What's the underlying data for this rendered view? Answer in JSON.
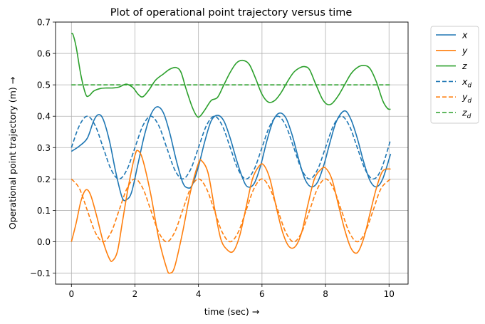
{
  "chart_data": {
    "type": "line",
    "title": "Plot of operational point trajectory versus time",
    "xlabel": "time (sec)  →",
    "ylabel": "Operational point trajectory (m)  →",
    "xlim": [
      -0.5,
      10.6
    ],
    "ylim": [
      -0.135,
      0.7
    ],
    "xticks": [
      0,
      2,
      4,
      6,
      8,
      10
    ],
    "xtick_labels": [
      "0",
      "2",
      "4",
      "6",
      "8",
      "10"
    ],
    "yticks": [
      -0.1,
      0.0,
      0.1,
      0.2,
      0.3,
      0.4,
      0.5,
      0.6,
      0.7
    ],
    "ytick_labels": [
      "−0.1",
      "0.0",
      "0.1",
      "0.2",
      "0.3",
      "0.4",
      "0.5",
      "0.6",
      "0.7"
    ],
    "grid": true,
    "legend_position": "outside-top-right",
    "series": [
      {
        "name": "x",
        "sub": "",
        "color": "#1f77b4",
        "dash": "solid",
        "points": [
          [
            0,
            0.288
          ],
          [
            0.25,
            0.305
          ],
          [
            0.5,
            0.33
          ],
          [
            0.7,
            0.385
          ],
          [
            0.85,
            0.405
          ],
          [
            1.0,
            0.39
          ],
          [
            1.2,
            0.32
          ],
          [
            1.4,
            0.22
          ],
          [
            1.6,
            0.14
          ],
          [
            1.75,
            0.135
          ],
          [
            1.9,
            0.16
          ],
          [
            2.1,
            0.25
          ],
          [
            2.3,
            0.34
          ],
          [
            2.5,
            0.405
          ],
          [
            2.7,
            0.43
          ],
          [
            2.9,
            0.41
          ],
          [
            3.1,
            0.345
          ],
          [
            3.3,
            0.26
          ],
          [
            3.5,
            0.19
          ],
          [
            3.65,
            0.172
          ],
          [
            3.8,
            0.18
          ],
          [
            4.0,
            0.24
          ],
          [
            4.2,
            0.32
          ],
          [
            4.4,
            0.385
          ],
          [
            4.6,
            0.403
          ],
          [
            4.8,
            0.385
          ],
          [
            5.0,
            0.33
          ],
          [
            5.2,
            0.26
          ],
          [
            5.4,
            0.2
          ],
          [
            5.55,
            0.175
          ],
          [
            5.75,
            0.185
          ],
          [
            5.95,
            0.24
          ],
          [
            6.15,
            0.32
          ],
          [
            6.35,
            0.385
          ],
          [
            6.55,
            0.41
          ],
          [
            6.75,
            0.395
          ],
          [
            6.95,
            0.34
          ],
          [
            7.15,
            0.265
          ],
          [
            7.35,
            0.2
          ],
          [
            7.55,
            0.175
          ],
          [
            7.75,
            0.19
          ],
          [
            7.95,
            0.245
          ],
          [
            8.15,
            0.32
          ],
          [
            8.35,
            0.385
          ],
          [
            8.6,
            0.417
          ],
          [
            8.8,
            0.39
          ],
          [
            9.0,
            0.33
          ],
          [
            9.2,
            0.255
          ],
          [
            9.4,
            0.195
          ],
          [
            9.6,
            0.175
          ],
          [
            9.8,
            0.2
          ],
          [
            10.05,
            0.28
          ]
        ]
      },
      {
        "name": "y",
        "sub": "",
        "color": "#ff7f0e",
        "dash": "solid",
        "points": [
          [
            0,
            0.0
          ],
          [
            0.15,
            0.06
          ],
          [
            0.3,
            0.13
          ],
          [
            0.45,
            0.165
          ],
          [
            0.6,
            0.15
          ],
          [
            0.8,
            0.08
          ],
          [
            1.0,
            0.0
          ],
          [
            1.2,
            -0.055
          ],
          [
            1.3,
            -0.06
          ],
          [
            1.45,
            -0.03
          ],
          [
            1.6,
            0.06
          ],
          [
            1.8,
            0.18
          ],
          [
            2.0,
            0.275
          ],
          [
            2.1,
            0.29
          ],
          [
            2.25,
            0.26
          ],
          [
            2.5,
            0.15
          ],
          [
            2.75,
            0.01
          ],
          [
            3.0,
            -0.085
          ],
          [
            3.1,
            -0.1
          ],
          [
            3.25,
            -0.08
          ],
          [
            3.5,
            0.03
          ],
          [
            3.75,
            0.16
          ],
          [
            4.0,
            0.25
          ],
          [
            4.1,
            0.258
          ],
          [
            4.3,
            0.22
          ],
          [
            4.5,
            0.11
          ],
          [
            4.7,
            0.01
          ],
          [
            4.9,
            -0.025
          ],
          [
            5.1,
            -0.03
          ],
          [
            5.3,
            0.02
          ],
          [
            5.5,
            0.11
          ],
          [
            5.7,
            0.2
          ],
          [
            5.9,
            0.24
          ],
          [
            6.05,
            0.245
          ],
          [
            6.25,
            0.2
          ],
          [
            6.45,
            0.11
          ],
          [
            6.65,
            0.03
          ],
          [
            6.85,
            -0.015
          ],
          [
            7.05,
            -0.015
          ],
          [
            7.25,
            0.03
          ],
          [
            7.45,
            0.12
          ],
          [
            7.65,
            0.2
          ],
          [
            7.85,
            0.23
          ],
          [
            8.0,
            0.235
          ],
          [
            8.2,
            0.2
          ],
          [
            8.4,
            0.12
          ],
          [
            8.6,
            0.04
          ],
          [
            8.8,
            -0.02
          ],
          [
            9.0,
            -0.035
          ],
          [
            9.2,
            0.01
          ],
          [
            9.4,
            0.09
          ],
          [
            9.6,
            0.17
          ],
          [
            9.8,
            0.225
          ],
          [
            10.05,
            0.232
          ]
        ]
      },
      {
        "name": "z",
        "sub": "",
        "color": "#2ca02c",
        "dash": "solid",
        "points": [
          [
            0,
            0.663
          ],
          [
            0.05,
            0.66
          ],
          [
            0.15,
            0.62
          ],
          [
            0.3,
            0.53
          ],
          [
            0.45,
            0.47
          ],
          [
            0.55,
            0.465
          ],
          [
            0.7,
            0.48
          ],
          [
            0.9,
            0.488
          ],
          [
            1.1,
            0.49
          ],
          [
            1.3,
            0.49
          ],
          [
            1.5,
            0.493
          ],
          [
            1.7,
            0.502
          ],
          [
            1.8,
            0.5
          ],
          [
            1.95,
            0.49
          ],
          [
            2.1,
            0.47
          ],
          [
            2.25,
            0.462
          ],
          [
            2.45,
            0.485
          ],
          [
            2.65,
            0.515
          ],
          [
            2.9,
            0.535
          ],
          [
            3.1,
            0.55
          ],
          [
            3.3,
            0.555
          ],
          [
            3.45,
            0.54
          ],
          [
            3.6,
            0.49
          ],
          [
            3.8,
            0.43
          ],
          [
            3.95,
            0.4
          ],
          [
            4.05,
            0.4
          ],
          [
            4.2,
            0.42
          ],
          [
            4.4,
            0.45
          ],
          [
            4.6,
            0.46
          ],
          [
            4.8,
            0.5
          ],
          [
            5.0,
            0.54
          ],
          [
            5.2,
            0.57
          ],
          [
            5.4,
            0.578
          ],
          [
            5.6,
            0.565
          ],
          [
            5.8,
            0.52
          ],
          [
            6.0,
            0.47
          ],
          [
            6.2,
            0.445
          ],
          [
            6.4,
            0.45
          ],
          [
            6.6,
            0.475
          ],
          [
            6.8,
            0.51
          ],
          [
            7.0,
            0.54
          ],
          [
            7.2,
            0.555
          ],
          [
            7.35,
            0.558
          ],
          [
            7.5,
            0.548
          ],
          [
            7.7,
            0.5
          ],
          [
            7.9,
            0.455
          ],
          [
            8.05,
            0.438
          ],
          [
            8.2,
            0.44
          ],
          [
            8.4,
            0.465
          ],
          [
            8.6,
            0.5
          ],
          [
            8.8,
            0.535
          ],
          [
            9.0,
            0.555
          ],
          [
            9.2,
            0.562
          ],
          [
            9.4,
            0.552
          ],
          [
            9.6,
            0.51
          ],
          [
            9.8,
            0.45
          ],
          [
            9.95,
            0.425
          ],
          [
            10.05,
            0.422
          ]
        ]
      },
      {
        "name": "x",
        "sub": "d",
        "color": "#1f77b4",
        "dash": "dashed",
        "points": [
          [
            0,
            0.3
          ],
          [
            0.25,
            0.37
          ],
          [
            0.5,
            0.4
          ],
          [
            0.75,
            0.37
          ],
          [
            1.0,
            0.3
          ],
          [
            1.25,
            0.23
          ],
          [
            1.5,
            0.2
          ],
          [
            1.75,
            0.23
          ],
          [
            2.0,
            0.3
          ],
          [
            2.25,
            0.37
          ],
          [
            2.5,
            0.4
          ],
          [
            2.75,
            0.37
          ],
          [
            3.0,
            0.3
          ],
          [
            3.25,
            0.23
          ],
          [
            3.5,
            0.2
          ],
          [
            3.75,
            0.23
          ],
          [
            4.0,
            0.3
          ],
          [
            4.25,
            0.37
          ],
          [
            4.5,
            0.4
          ],
          [
            4.75,
            0.37
          ],
          [
            5.0,
            0.3
          ],
          [
            5.25,
            0.23
          ],
          [
            5.5,
            0.2
          ],
          [
            5.75,
            0.23
          ],
          [
            6.0,
            0.3
          ],
          [
            6.25,
            0.37
          ],
          [
            6.5,
            0.4
          ],
          [
            6.75,
            0.37
          ],
          [
            7.0,
            0.3
          ],
          [
            7.25,
            0.23
          ],
          [
            7.5,
            0.2
          ],
          [
            7.75,
            0.23
          ],
          [
            8.0,
            0.3
          ],
          [
            8.25,
            0.37
          ],
          [
            8.5,
            0.4
          ],
          [
            8.75,
            0.37
          ],
          [
            9.0,
            0.3
          ],
          [
            9.25,
            0.23
          ],
          [
            9.5,
            0.2
          ],
          [
            9.75,
            0.23
          ],
          [
            10.05,
            0.325
          ]
        ]
      },
      {
        "name": "y",
        "sub": "d",
        "color": "#ff7f0e",
        "dash": "dashed",
        "points": [
          [
            0,
            0.2
          ],
          [
            0.25,
            0.17
          ],
          [
            0.5,
            0.1
          ],
          [
            0.75,
            0.03
          ],
          [
            1.0,
            0.0
          ],
          [
            1.25,
            0.03
          ],
          [
            1.5,
            0.1
          ],
          [
            1.75,
            0.17
          ],
          [
            2.0,
            0.2
          ],
          [
            2.25,
            0.17
          ],
          [
            2.5,
            0.1
          ],
          [
            2.75,
            0.03
          ],
          [
            3.0,
            0.0
          ],
          [
            3.25,
            0.03
          ],
          [
            3.5,
            0.1
          ],
          [
            3.75,
            0.17
          ],
          [
            4.0,
            0.2
          ],
          [
            4.25,
            0.17
          ],
          [
            4.5,
            0.1
          ],
          [
            4.75,
            0.03
          ],
          [
            5.0,
            0.0
          ],
          [
            5.25,
            0.03
          ],
          [
            5.5,
            0.1
          ],
          [
            5.75,
            0.17
          ],
          [
            6.0,
            0.2
          ],
          [
            6.25,
            0.17
          ],
          [
            6.5,
            0.1
          ],
          [
            6.75,
            0.03
          ],
          [
            7.0,
            0.0
          ],
          [
            7.25,
            0.03
          ],
          [
            7.5,
            0.1
          ],
          [
            7.75,
            0.17
          ],
          [
            8.0,
            0.2
          ],
          [
            8.25,
            0.17
          ],
          [
            8.5,
            0.1
          ],
          [
            8.75,
            0.03
          ],
          [
            9.0,
            0.0
          ],
          [
            9.25,
            0.03
          ],
          [
            9.5,
            0.1
          ],
          [
            9.75,
            0.17
          ],
          [
            10.05,
            0.2
          ]
        ]
      },
      {
        "name": "z",
        "sub": "d",
        "color": "#2ca02c",
        "dash": "dashed",
        "points": [
          [
            0,
            0.5
          ],
          [
            10.05,
            0.5
          ]
        ]
      }
    ]
  }
}
